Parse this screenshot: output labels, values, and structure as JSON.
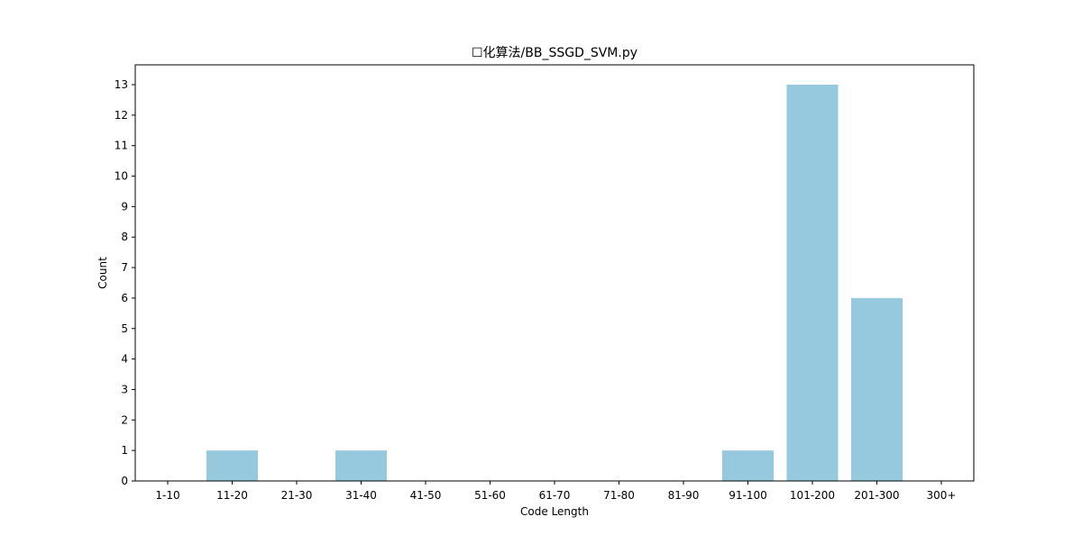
{
  "chart_data": {
    "type": "bar",
    "title": "☐化算法/BB_SSGD_SVM.py",
    "xlabel": "Code Length",
    "ylabel": "Count",
    "categories": [
      "1-10",
      "11-20",
      "21-30",
      "31-40",
      "41-50",
      "51-60",
      "61-70",
      "71-80",
      "81-90",
      "91-100",
      "101-200",
      "201-300",
      "300+"
    ],
    "values": [
      0,
      1,
      0,
      1,
      0,
      0,
      0,
      0,
      0,
      1,
      13,
      6,
      0
    ],
    "ylim": [
      0,
      13.65
    ],
    "yticks": [
      0,
      1,
      2,
      3,
      4,
      5,
      6,
      7,
      8,
      9,
      10,
      11,
      12,
      13
    ],
    "grid": false,
    "legend": "none",
    "bar_color": "#96c9dd"
  }
}
